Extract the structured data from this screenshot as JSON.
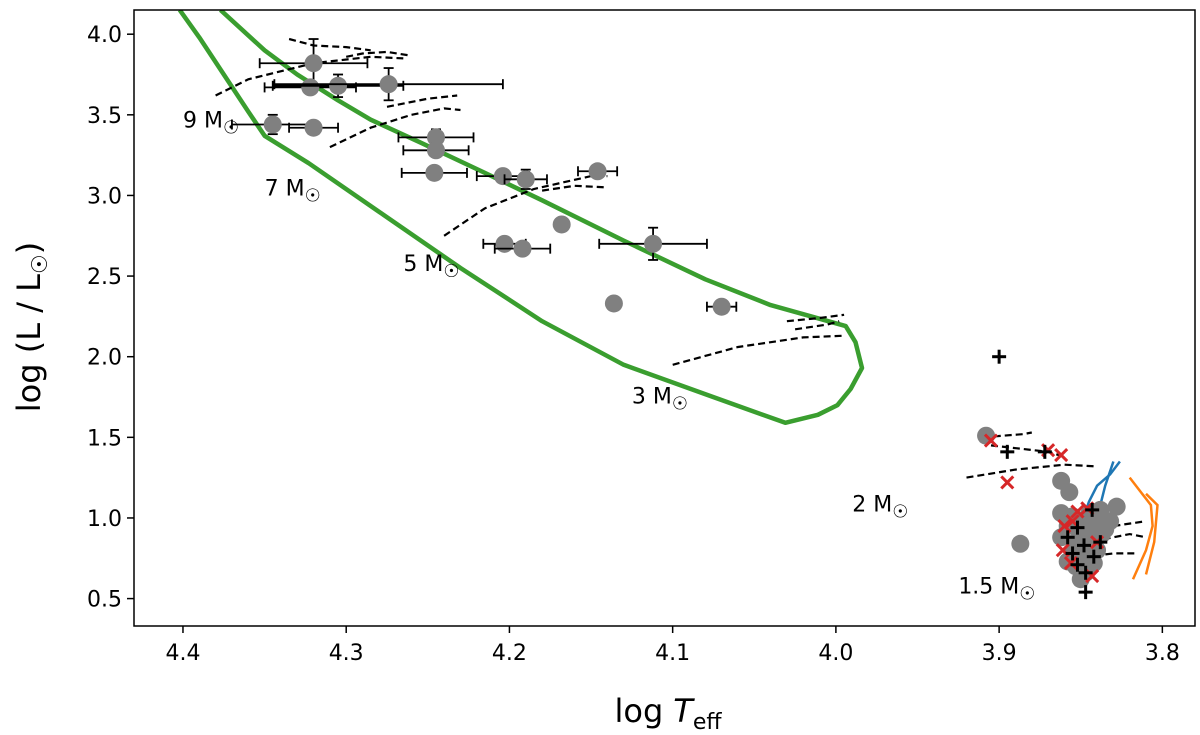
{
  "chart_data": {
    "type": "scatter",
    "title": "",
    "xlabel_main": "log",
    "xlabel_sym": "T",
    "xlabel_sub": "eff",
    "ylabel_text": "log (L / L",
    "ylabel_sun": "☉",
    "ylabel_close": ")",
    "xlim": [
      4.43,
      3.78
    ],
    "ylim": [
      0.33,
      4.15
    ],
    "x_inverted": true,
    "xticks": [
      4.4,
      4.3,
      4.2,
      4.1,
      4.0,
      3.9,
      3.8
    ],
    "xtick_labels": [
      "4.4",
      "4.3",
      "4.2",
      "4.1",
      "4.0",
      "3.9",
      "3.8"
    ],
    "yticks": [
      0.5,
      1.0,
      1.5,
      2.0,
      2.5,
      3.0,
      3.5,
      4.0
    ],
    "ytick_labels": [
      "0.5",
      "1.0",
      "1.5",
      "2.0",
      "2.5",
      "3.0",
      "3.5",
      "4.0"
    ],
    "grid": false,
    "colors": {
      "instability_strip": "#3a9e2f",
      "points": "#808080",
      "error_bars": "#000000",
      "tracks": "#000000",
      "cross_markers": "#d62728",
      "plus_markers": "#000000",
      "blue_edge": "#1f77b4",
      "orange_edge": "#ff7f0e"
    },
    "mass_labels": [
      {
        "text": "9 M",
        "x": 4.4,
        "y": 3.42
      },
      {
        "text": "7 M",
        "x": 4.35,
        "y": 3.0
      },
      {
        "text": "5 M",
        "x": 4.265,
        "y": 2.53
      },
      {
        "text": "3 M",
        "x": 4.125,
        "y": 1.71
      },
      {
        "text": "2 M",
        "x": 3.99,
        "y": 1.04
      },
      {
        "text": "1.5 M",
        "x": 3.925,
        "y": 0.53
      }
    ],
    "instability_strip": [
      [
        4.377,
        4.15
      ],
      [
        4.35,
        3.9
      ],
      [
        4.33,
        3.75
      ],
      [
        4.305,
        3.59
      ],
      [
        4.285,
        3.47
      ],
      [
        4.255,
        3.33
      ],
      [
        4.215,
        3.14
      ],
      [
        4.18,
        2.97
      ],
      [
        4.13,
        2.72
      ],
      [
        4.08,
        2.48
      ],
      [
        4.04,
        2.32
      ],
      [
        3.994,
        2.19
      ],
      [
        3.988,
        2.09
      ],
      [
        3.984,
        1.93
      ],
      [
        3.991,
        1.8
      ],
      [
        3.999,
        1.7
      ],
      [
        4.011,
        1.64
      ],
      [
        4.031,
        1.59
      ],
      [
        4.078,
        1.76
      ],
      [
        4.13,
        1.95
      ],
      [
        4.18,
        2.22
      ],
      [
        4.23,
        2.55
      ],
      [
        4.28,
        2.9
      ],
      [
        4.323,
        3.2
      ],
      [
        4.35,
        3.37
      ],
      [
        4.36,
        3.52
      ],
      [
        4.375,
        3.75
      ],
      [
        4.39,
        3.98
      ],
      [
        4.402,
        4.15
      ]
    ],
    "tracks": [
      [
        [
          4.38,
          3.62
        ],
        [
          4.36,
          3.72
        ],
        [
          4.32,
          3.82
        ],
        [
          4.285,
          3.86
        ],
        [
          4.265,
          3.85
        ]
      ],
      [
        [
          4.335,
          3.97
        ],
        [
          4.32,
          3.93
        ],
        [
          4.3,
          3.92
        ],
        [
          4.285,
          3.9
        ]
      ],
      [
        [
          4.3,
          3.86
        ],
        [
          4.29,
          3.88
        ],
        [
          4.275,
          3.89
        ],
        [
          4.262,
          3.87
        ]
      ],
      [
        [
          4.31,
          3.3
        ],
        [
          4.285,
          3.42
        ],
        [
          4.26,
          3.5
        ],
        [
          4.24,
          3.54
        ],
        [
          4.23,
          3.53
        ]
      ],
      [
        [
          4.275,
          3.55
        ],
        [
          4.25,
          3.6
        ],
        [
          4.232,
          3.62
        ]
      ],
      [
        [
          4.24,
          2.75
        ],
        [
          4.215,
          2.92
        ],
        [
          4.185,
          3.04
        ],
        [
          4.15,
          3.12
        ],
        [
          4.14,
          3.12
        ]
      ],
      [
        [
          4.18,
          3.03
        ],
        [
          4.16,
          3.06
        ],
        [
          4.14,
          3.05
        ]
      ],
      [
        [
          4.1,
          1.95
        ],
        [
          4.06,
          2.06
        ],
        [
          4.02,
          2.12
        ],
        [
          3.995,
          2.13
        ]
      ],
      [
        [
          4.03,
          2.22
        ],
        [
          4.01,
          2.24
        ],
        [
          3.995,
          2.26
        ]
      ],
      [
        [
          4.025,
          2.17
        ],
        [
          4.005,
          2.2
        ],
        [
          3.998,
          2.22
        ]
      ],
      [
        [
          3.92,
          1.25
        ],
        [
          3.89,
          1.3
        ],
        [
          3.86,
          1.33
        ],
        [
          3.84,
          1.32
        ]
      ],
      [
        [
          3.91,
          1.5
        ],
        [
          3.885,
          1.52
        ],
        [
          3.88,
          1.53
        ]
      ],
      [
        [
          3.905,
          1.45
        ],
        [
          3.87,
          1.41
        ],
        [
          3.86,
          1.38
        ]
      ],
      [
        [
          3.855,
          0.8
        ],
        [
          3.84,
          0.86
        ],
        [
          3.82,
          0.9
        ],
        [
          3.81,
          0.88
        ]
      ],
      [
        [
          3.855,
          0.75
        ],
        [
          3.83,
          0.78
        ],
        [
          3.815,
          0.78
        ]
      ],
      [
        [
          3.83,
          0.95
        ],
        [
          3.81,
          0.98
        ]
      ]
    ],
    "blue_edge": [
      [
        [
          3.86,
          0.8
        ],
        [
          3.85,
          0.95
        ],
        [
          3.845,
          1.1
        ],
        [
          3.84,
          1.2
        ],
        [
          3.832,
          1.27
        ],
        [
          3.826,
          1.35
        ]
      ],
      [
        [
          3.84,
          1.0
        ],
        [
          3.835,
          1.2
        ],
        [
          3.83,
          1.35
        ]
      ]
    ],
    "orange_edge": [
      [
        [
          3.818,
          0.62
        ],
        [
          3.81,
          0.8
        ],
        [
          3.806,
          0.95
        ],
        [
          3.807,
          1.08
        ],
        [
          3.82,
          1.25
        ]
      ],
      [
        [
          3.81,
          0.65
        ],
        [
          3.805,
          0.85
        ],
        [
          3.803,
          1.08
        ],
        [
          3.81,
          1.15
        ]
      ]
    ],
    "points_with_errors": [
      {
        "x": 4.32,
        "y": 3.82,
        "xerr": 0.033,
        "yerr": 0.15
      },
      {
        "x": 4.322,
        "y": 3.67,
        "xerr": 0.028,
        "yerr": 0.0
      },
      {
        "x": 4.305,
        "y": 3.68,
        "xerr": 0.04,
        "yerr": 0.07
      },
      {
        "x": 4.274,
        "y": 3.69,
        "xerr": 0.07,
        "yerr": 0.1
      },
      {
        "x": 4.345,
        "y": 3.44,
        "xerr": 0.025,
        "yerr": 0.06
      },
      {
        "x": 4.32,
        "y": 3.42,
        "xerr": 0.015,
        "yerr": 0.03
      },
      {
        "x": 4.245,
        "y": 3.36,
        "xerr": 0.023,
        "yerr": 0.05
      },
      {
        "x": 4.245,
        "y": 3.28,
        "xerr": 0.02,
        "yerr": 0.04
      },
      {
        "x": 4.246,
        "y": 3.14,
        "xerr": 0.02,
        "yerr": 0.0
      },
      {
        "x": 4.204,
        "y": 3.12,
        "xerr": 0.016,
        "yerr": 0.0
      },
      {
        "x": 4.19,
        "y": 3.1,
        "xerr": 0.013,
        "yerr": 0.06
      },
      {
        "x": 4.146,
        "y": 3.15,
        "xerr": 0.012,
        "yerr": 0.0
      },
      {
        "x": 4.168,
        "y": 2.82,
        "xerr": 0.0,
        "yerr": 0.0
      },
      {
        "x": 4.203,
        "y": 2.7,
        "xerr": 0.013,
        "yerr": 0.0
      },
      {
        "x": 4.192,
        "y": 2.67,
        "xerr": 0.017,
        "yerr": 0.0
      },
      {
        "x": 4.112,
        "y": 2.7,
        "xerr": 0.033,
        "yerr": 0.1
      },
      {
        "x": 4.136,
        "y": 2.33,
        "xerr": 0.0,
        "yerr": 0.0
      },
      {
        "x": 4.07,
        "y": 2.31,
        "xerr": 0.009,
        "yerr": 0.0
      }
    ],
    "grey_points": [
      [
        3.908,
        1.51
      ],
      [
        3.887,
        0.84
      ],
      [
        3.862,
        1.23
      ],
      [
        3.857,
        1.16
      ],
      [
        3.862,
        1.03
      ],
      [
        3.855,
        1.01
      ],
      [
        3.848,
        0.98
      ],
      [
        3.841,
        0.96
      ],
      [
        3.835,
        0.93
      ],
      [
        3.858,
        0.95
      ],
      [
        3.85,
        0.91
      ],
      [
        3.843,
        0.88
      ],
      [
        3.837,
        0.9
      ],
      [
        3.852,
        0.86
      ],
      [
        3.846,
        0.83
      ],
      [
        3.855,
        0.79
      ],
      [
        3.848,
        0.76
      ],
      [
        3.842,
        0.72
      ],
      [
        3.853,
        0.7
      ],
      [
        3.847,
        0.66
      ],
      [
        3.85,
        0.62
      ],
      [
        3.84,
        0.8
      ],
      [
        3.832,
        0.98
      ],
      [
        3.828,
        1.07
      ],
      [
        3.838,
        1.05
      ],
      [
        3.862,
        0.88
      ],
      [
        3.845,
        1.02
      ],
      [
        3.858,
        0.73
      ]
    ],
    "black_plus_points": [
      [
        3.9,
        2.0
      ],
      [
        3.895,
        1.41
      ],
      [
        3.872,
        1.41
      ],
      [
        3.843,
        1.05
      ],
      [
        3.852,
        0.94
      ],
      [
        3.858,
        0.88
      ],
      [
        3.848,
        0.83
      ],
      [
        3.855,
        0.78
      ],
      [
        3.842,
        0.76
      ],
      [
        3.852,
        0.71
      ],
      [
        3.847,
        0.66
      ],
      [
        3.847,
        0.54
      ],
      [
        3.838,
        0.85
      ]
    ],
    "red_cross_points": [
      [
        3.905,
        1.48
      ],
      [
        3.895,
        1.22
      ],
      [
        3.87,
        1.42
      ],
      [
        3.862,
        1.39
      ],
      [
        3.86,
        0.95
      ],
      [
        3.855,
        0.98
      ],
      [
        3.852,
        1.04
      ],
      [
        3.846,
        1.06
      ],
      [
        3.84,
        0.85
      ],
      [
        3.861,
        0.8
      ],
      [
        3.843,
        0.64
      ],
      [
        3.856,
        0.72
      ]
    ]
  }
}
